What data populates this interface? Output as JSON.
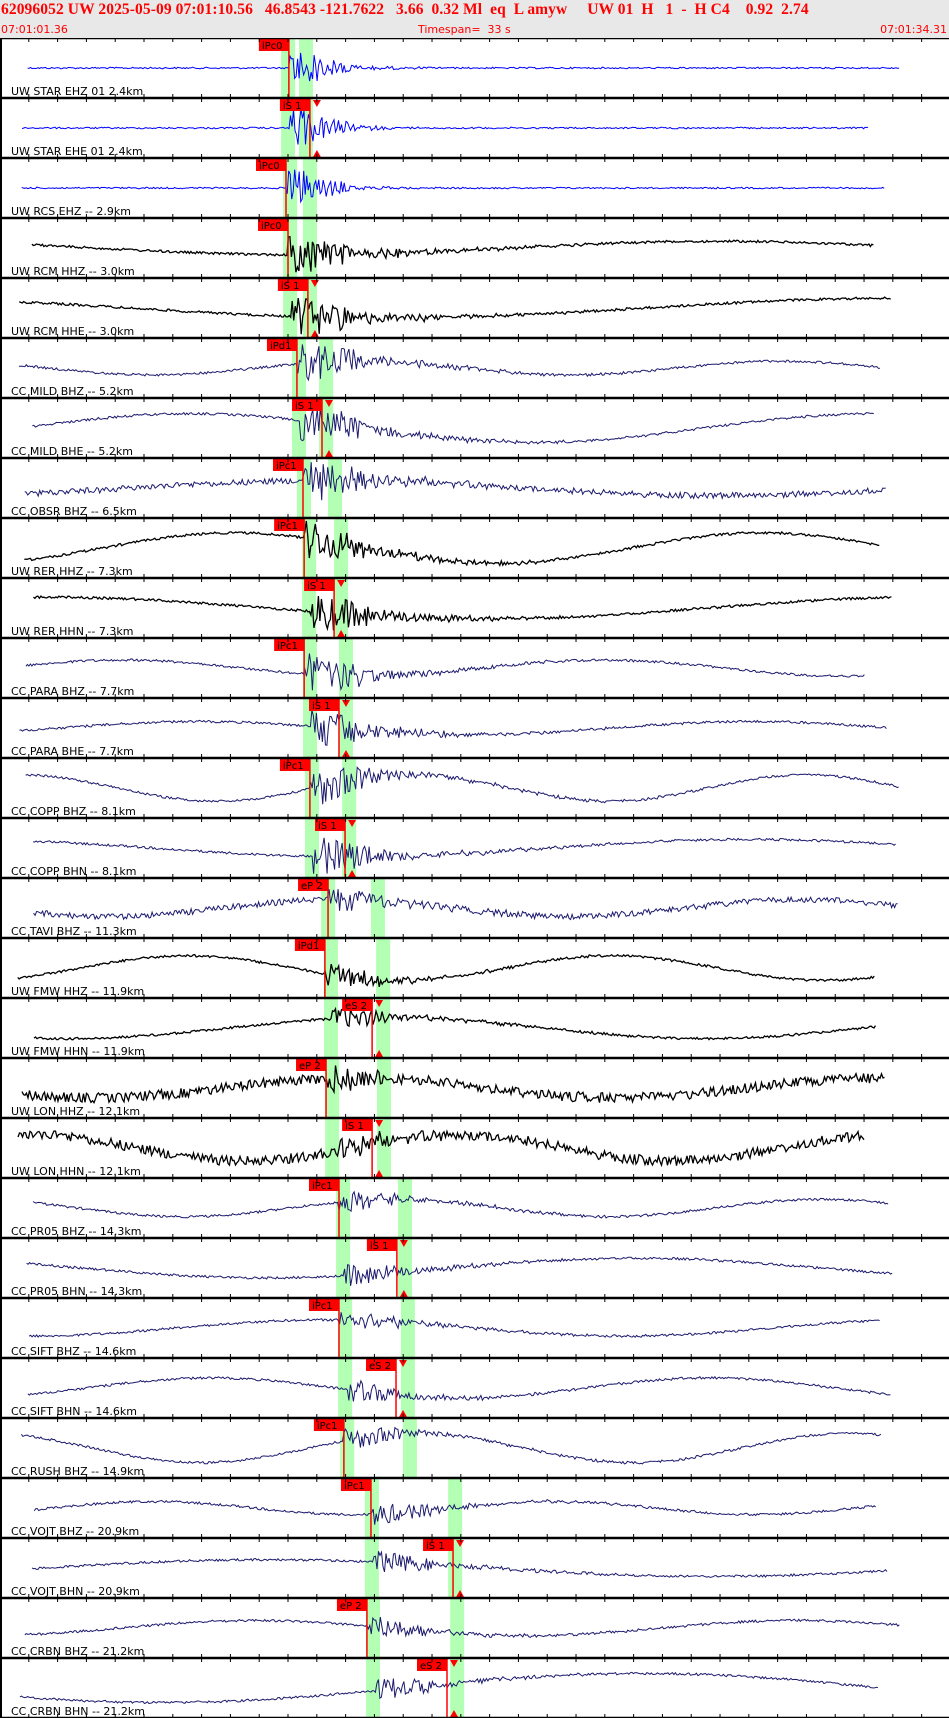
{
  "header": {
    "event_line": "62096052 UW 2025-05-09 07:01:10.56   46.8543 -121.7622   3.66  0.32 Ml  eq  L amyw     UW 01  H   1  -  H C4    0.92  2.74",
    "start_time": "07:01:01.36",
    "timespan": "Timespan=  33 s",
    "end_time": "07:01:34.31"
  },
  "colors": {
    "pick": "#ff0000",
    "window": "#b3ffb3",
    "blue": "#0000ff",
    "black": "#000000",
    "navy": "#1c1a6e",
    "header_bg": "#e8e8e8"
  },
  "chart_data": {
    "type": "line",
    "xaxis": {
      "start": "07:01:01.36",
      "end": "07:01:34.31",
      "span_s": 32.95,
      "tick_interval_s": 1
    },
    "traces": [
      {
        "label": "UW STAR EHZ 01 2.4km",
        "color": "blue",
        "pick": "iPc0",
        "pick_time": "07:01:11.39",
        "p_win": "07:01:11.12",
        "s_win": "07:01:11.74"
      },
      {
        "label": "UW STAR EHE 01 2.4km",
        "color": "blue",
        "pick": "iS 1",
        "pick_time": "07:01:12.12",
        "p_win": "07:01:11.12",
        "s_win": "07:01:11.74"
      },
      {
        "label": "UW RCS EHZ -- 2.9km",
        "color": "blue",
        "pick": "iPc0",
        "pick_time": "07:01:11.29",
        "p_win": "07:01:11.19",
        "s_win": "07:01:11.88"
      },
      {
        "label": "UW RCM HHZ -- 3.0km",
        "color": "black",
        "pick": "iPc0",
        "pick_time": "07:01:11.36",
        "p_win": "07:01:11.19",
        "s_win": "07:01:11.88"
      },
      {
        "label": "UW RCM HHE -- 3.0km",
        "color": "black",
        "pick": "iS 1",
        "pick_time": "07:01:12.05",
        "p_win": "07:01:11.19",
        "s_win": "07:01:11.88"
      },
      {
        "label": "CC MILD BHZ -- 5.2km",
        "color": "navy",
        "pick": "iPd1",
        "pick_time": "07:01:11.67",
        "p_win": "07:01:11.50",
        "s_win": "07:01:12.44"
      },
      {
        "label": "CC MILD BHE -- 5.2km",
        "color": "navy",
        "pick": "iS 1",
        "pick_time": "07:01:12.54",
        "p_win": "07:01:11.50",
        "s_win": "07:01:12.44"
      },
      {
        "label": "CC OBSR BHZ -- 6.5km",
        "color": "navy",
        "pick": "iPc1",
        "pick_time": "07:01:11.88",
        "p_win": "07:01:11.67",
        "s_win": "07:01:12.75"
      },
      {
        "label": "UW RER HHZ -- 7.3km",
        "color": "black",
        "pick": "iPc1",
        "pick_time": "07:01:11.92",
        "p_win": "07:01:11.85",
        "s_win": "07:01:12.96"
      },
      {
        "label": "UW RER HHN -- 7.3km",
        "color": "black",
        "pick": "iS 1",
        "pick_time": "07:01:12.96",
        "p_win": "07:01:11.85",
        "s_win": "07:01:12.96"
      },
      {
        "label": "CC PARA BHZ -- 7.7km",
        "color": "navy",
        "pick": "iPc1",
        "pick_time": "07:01:11.92",
        "p_win": "07:01:11.88",
        "s_win": "07:01:13.13"
      },
      {
        "label": "CC PARA BHE -- 7.7km",
        "color": "navy",
        "pick": "iS 1",
        "pick_time": "07:01:13.13",
        "p_win": "07:01:11.88",
        "s_win": "07:01:13.13"
      },
      {
        "label": "CC COPP BHZ -- 8.1km",
        "color": "navy",
        "pick": "iPc1",
        "pick_time": "07:01:12.12",
        "p_win": "07:01:11.95",
        "s_win": "07:01:13.24"
      },
      {
        "label": "CC COPP BHN -- 8.1km",
        "color": "navy",
        "pick": "iS 1",
        "pick_time": "07:01:13.34",
        "p_win": "07:01:11.95",
        "s_win": "07:01:13.24"
      },
      {
        "label": "CC TAVI BHZ -- 11.3km",
        "color": "navy",
        "pick": "eP 2",
        "pick_time": "07:01:12.75",
        "p_win": "07:01:12.51",
        "s_win": "07:01:14.24"
      },
      {
        "label": "UW FMW HHZ -- 11.9km",
        "color": "black",
        "pick": "iPd1",
        "pick_time": "07:01:12.64",
        "p_win": "07:01:12.61",
        "s_win": "07:01:14.42"
      },
      {
        "label": "UW FMW HHN -- 11.9km",
        "color": "black",
        "pick": "eS 2",
        "pick_time": "07:01:14.28",
        "p_win": "07:01:12.61",
        "s_win": "07:01:14.42"
      },
      {
        "label": "UW LON HHZ -- 12.1km",
        "color": "black",
        "pick": "eP 2",
        "pick_time": "07:01:12.68",
        "p_win": "07:01:12.65",
        "s_win": "07:01:14.45"
      },
      {
        "label": "UW LON HHN -- 12.1km",
        "color": "black",
        "pick": "iS 1",
        "pick_time": "07:01:14.28",
        "p_win": "07:01:12.65",
        "s_win": "07:01:14.45"
      },
      {
        "label": "CC PR05 BHZ -- 14.3km",
        "color": "navy",
        "pick": "iPc1",
        "pick_time": "07:01:13.13",
        "p_win": "07:01:13.03",
        "s_win": "07:01:15.18"
      },
      {
        "label": "CC PR05 BHN -- 14.3km",
        "color": "navy",
        "pick": "iS 1",
        "pick_time": "07:01:15.14",
        "p_win": "07:01:13.03",
        "s_win": "07:01:15.18"
      },
      {
        "label": "CC SIFT BHZ -- 14.6km",
        "color": "navy",
        "pick": "iPc1",
        "pick_time": "07:01:13.13",
        "p_win": "07:01:13.10",
        "s_win": "07:01:15.28"
      },
      {
        "label": "CC SIFT BHN -- 14.6km",
        "color": "navy",
        "pick": "eS 2",
        "pick_time": "07:01:15.11",
        "p_win": "07:01:13.10",
        "s_win": "07:01:15.28"
      },
      {
        "label": "CC RUSH BHZ -- 14.9km",
        "color": "navy",
        "pick": "iPc1",
        "pick_time": "07:01:13.30",
        "p_win": "07:01:13.17",
        "s_win": "07:01:15.35"
      },
      {
        "label": "CC VOJT BHZ -- 20.9km",
        "color": "navy",
        "pick": "iPc1",
        "pick_time": "07:01:14.24",
        "p_win": "07:01:14.03",
        "s_win": "07:01:16.92"
      },
      {
        "label": "CC VOJT BHN -- 20.9km",
        "color": "navy",
        "pick": "iS 1",
        "pick_time": "07:01:17.09",
        "p_win": "07:01:14.03",
        "s_win": "07:01:16.92"
      },
      {
        "label": "CC CRBN BHZ -- 21.2km",
        "color": "navy",
        "pick": "eP 2",
        "pick_time": "07:01:14.10",
        "p_win": "07:01:14.07",
        "s_win": "07:01:16.99"
      },
      {
        "label": "CC CRBN BHN -- 21.2km",
        "color": "navy",
        "pick": "eS 2",
        "pick_time": "07:01:16.88",
        "p_win": "07:01:14.07",
        "s_win": "07:01:16.99"
      }
    ]
  }
}
